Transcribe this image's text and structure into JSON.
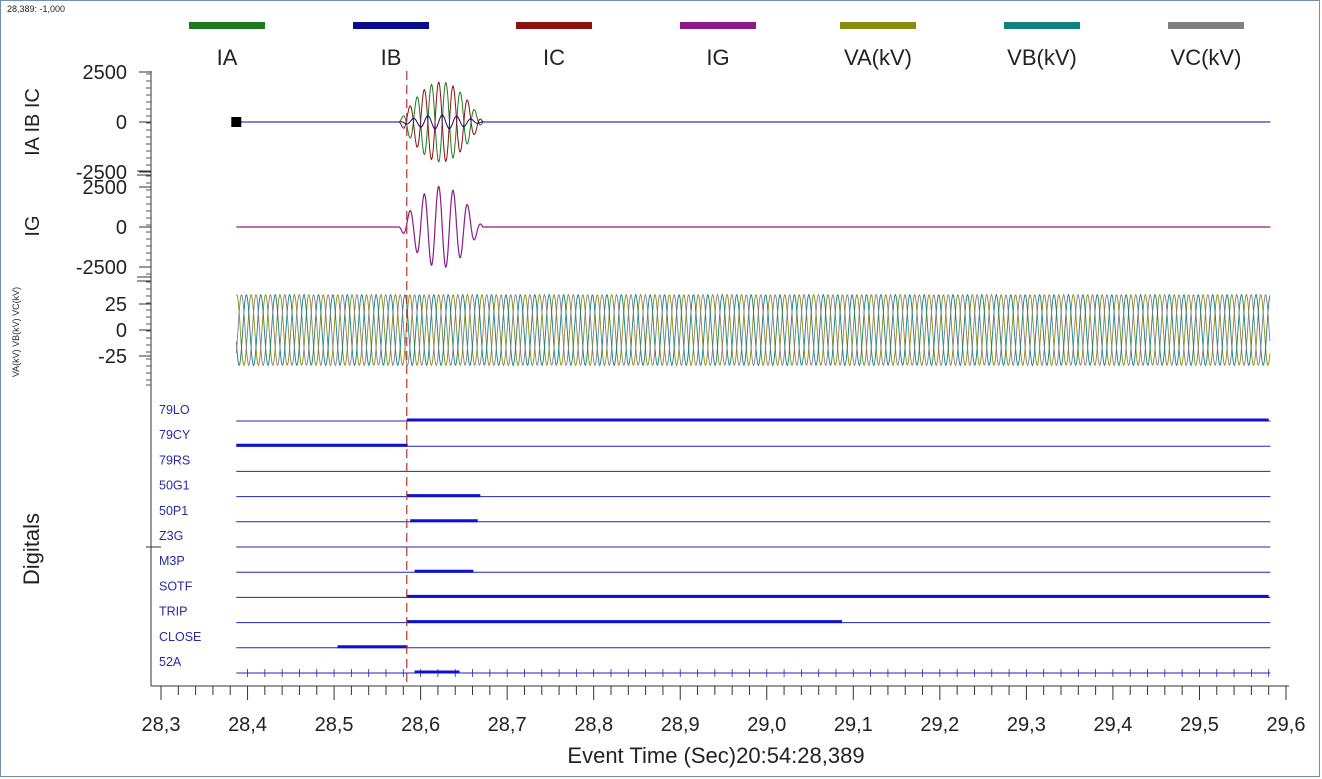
{
  "cursor_readout": "28,389: -1,000",
  "chart_data": {
    "type": "line",
    "title": "",
    "xlabel": "Event Time (Sec)20:54:28,389",
    "xlim": [
      28.3,
      29.6
    ],
    "x_ticks": [
      "28,3",
      "28,4",
      "28,5",
      "28,6",
      "28,7",
      "28,8",
      "28,9",
      "29,0",
      "29,1",
      "29,2",
      "29,3",
      "29,4",
      "29,5",
      "29,6"
    ],
    "cursor_x": 28.584,
    "legend_position": "top",
    "legend": [
      {
        "name": "IA",
        "color": "#1f7a1f"
      },
      {
        "name": "IB",
        "color": "#0a0a8c"
      },
      {
        "name": "IC",
        "color": "#8b1010"
      },
      {
        "name": "IG",
        "color": "#8b1a8b"
      },
      {
        "name": "VA(kV)",
        "color": "#8b8b10"
      },
      {
        "name": "VB(kV)",
        "color": "#108080"
      },
      {
        "name": "VC(kV)",
        "color": "#808080"
      }
    ],
    "panels": [
      {
        "ylabel": "IA IB IC",
        "ylim": [
          -2500,
          2500
        ],
        "yticks": [
          "2500",
          "0",
          "-2500"
        ],
        "series": [
          {
            "name": "IA",
            "signal": "fault burst 28.58–28.67, peak ≈2000"
          },
          {
            "name": "IB",
            "signal": "small oscillation 28.58–28.67, peak ≈400"
          },
          {
            "name": "IC",
            "signal": "fault burst 28.58–28.67, peak ≈2000"
          }
        ]
      },
      {
        "ylabel": "IG",
        "ylim": [
          -2500,
          2500
        ],
        "yticks": [
          "2500",
          "0",
          "-2500"
        ],
        "series": [
          {
            "name": "IG",
            "signal": "fault burst 28.58–28.67, peak ≈2500"
          }
        ]
      },
      {
        "ylabel": "VA(kV) VB(kV) VC(kV)",
        "ylim": [
          -25,
          25
        ],
        "yticks": [
          "25",
          "0",
          "-25"
        ],
        "series": [
          {
            "name": "VA(kV)",
            "signal": "sinusoid, amplitude ≈35 kV, 28.39–29.58"
          },
          {
            "name": "VB(kV)",
            "signal": "sinusoid, amplitude ≈35 kV, 28.39–29.58"
          },
          {
            "name": "VC(kV)",
            "signal": "sinusoid, amplitude ≈35 kV, 28.39–29.58"
          }
        ]
      }
    ],
    "digitals": {
      "ylabel": "Digitals",
      "channels": [
        {
          "name": "79LO",
          "on": [
            [
              28.584,
              29.58
            ]
          ]
        },
        {
          "name": "79CY",
          "on": [
            [
              28.387,
              28.585
            ]
          ]
        },
        {
          "name": "79RS",
          "on": []
        },
        {
          "name": "50G1",
          "on": [
            [
              28.584,
              28.669
            ]
          ]
        },
        {
          "name": "50P1",
          "on": [
            [
              28.588,
              28.666
            ]
          ]
        },
        {
          "name": "Z3G",
          "on": []
        },
        {
          "name": "M3P",
          "on": [
            [
              28.593,
              28.661
            ]
          ]
        },
        {
          "name": "SOTF",
          "on": [
            [
              28.584,
              29.58
            ]
          ]
        },
        {
          "name": "TRIP",
          "on": [
            [
              28.584,
              29.087
            ]
          ]
        },
        {
          "name": "CLOSE",
          "on": [
            [
              28.504,
              28.585
            ]
          ]
        },
        {
          "name": "52A",
          "on": [
            [
              28.593,
              28.645
            ]
          ]
        }
      ]
    }
  }
}
